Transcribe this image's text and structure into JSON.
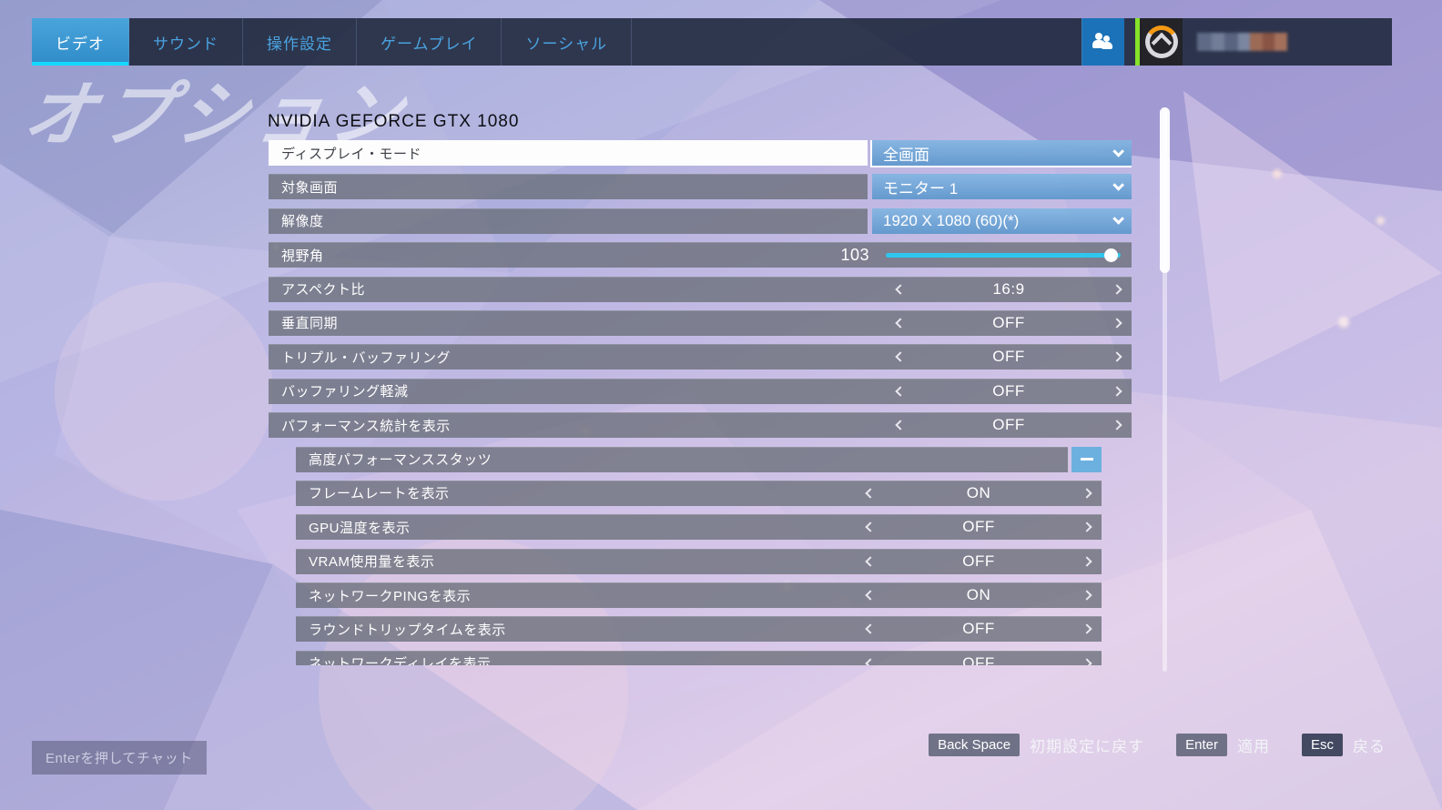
{
  "watermark": "オプション",
  "tabs": [
    {
      "label": "ビデオ",
      "active": true
    },
    {
      "label": "サウンド",
      "active": false
    },
    {
      "label": "操作設定",
      "active": false
    },
    {
      "label": "ゲームプレイ",
      "active": false
    },
    {
      "label": "ソーシャル",
      "active": false
    }
  ],
  "topbar_icons": {
    "friend_button": "group-add-icon",
    "logo": "overwatch-logo",
    "player_name": "censored"
  },
  "gpu_header": "NVIDIA GEFORCE GTX 1080",
  "settings": {
    "rows": [
      {
        "type": "dropdown",
        "label": "ディスプレイ・モード",
        "value": "全画面",
        "selected": true
      },
      {
        "type": "dropdown",
        "label": "対象画面",
        "value": "モニター 1"
      },
      {
        "type": "dropdown",
        "label": "解像度",
        "value": "1920 X 1080 (60)(*)"
      },
      {
        "type": "slider",
        "label": "視野角",
        "value": "103",
        "percent": 96
      },
      {
        "type": "stepper",
        "label": "アスペクト比",
        "value": "16:9"
      },
      {
        "type": "stepper",
        "label": "垂直同期",
        "value": "OFF"
      },
      {
        "type": "stepper",
        "label": "トリプル・バッファリング",
        "value": "OFF"
      },
      {
        "type": "stepper",
        "label": "バッファリング軽減",
        "value": "OFF"
      },
      {
        "type": "stepper",
        "label": "パフォーマンス統計を表示",
        "value": "OFF"
      },
      {
        "type": "group",
        "label": "高度パフォーマンススタッツ",
        "button": "collapse-minus",
        "indent": true
      },
      {
        "type": "stepper",
        "label": "フレームレートを表示",
        "value": "ON",
        "indent": true
      },
      {
        "type": "stepper",
        "label": "GPU温度を表示",
        "value": "OFF",
        "indent": true
      },
      {
        "type": "stepper",
        "label": "VRAM使用量を表示",
        "value": "OFF",
        "indent": true
      },
      {
        "type": "stepper",
        "label": "ネットワークPINGを表示",
        "value": "ON",
        "indent": true
      },
      {
        "type": "stepper",
        "label": "ラウンドトリップタイムを表示",
        "value": "OFF",
        "indent": true
      },
      {
        "type": "stepper",
        "label": "ネットワークディレイを表示",
        "value": "OFF",
        "indent": true
      }
    ]
  },
  "footer": {
    "chat_hint": "Enterを押してチャット",
    "shortcuts": [
      {
        "key": "Back Space",
        "label": "初期設定に戻す",
        "dark": false
      },
      {
        "key": "Enter",
        "label": "適用",
        "dark": false
      },
      {
        "key": "Esc",
        "label": "戻る",
        "dark": true
      }
    ]
  },
  "colors": {
    "accent_cyan": "#14d9ff",
    "active_tab_blue": "#3a96d4",
    "dropdown_blue": "#74a9dc",
    "slider_cyan": "#2ec6ee",
    "green_stripe": "#86e22a",
    "logo_orange": "#f59a14",
    "row_grey": "rgba(105,110,120,0.78)",
    "topbar_navy": "rgba(28,38,58,0.88)"
  }
}
